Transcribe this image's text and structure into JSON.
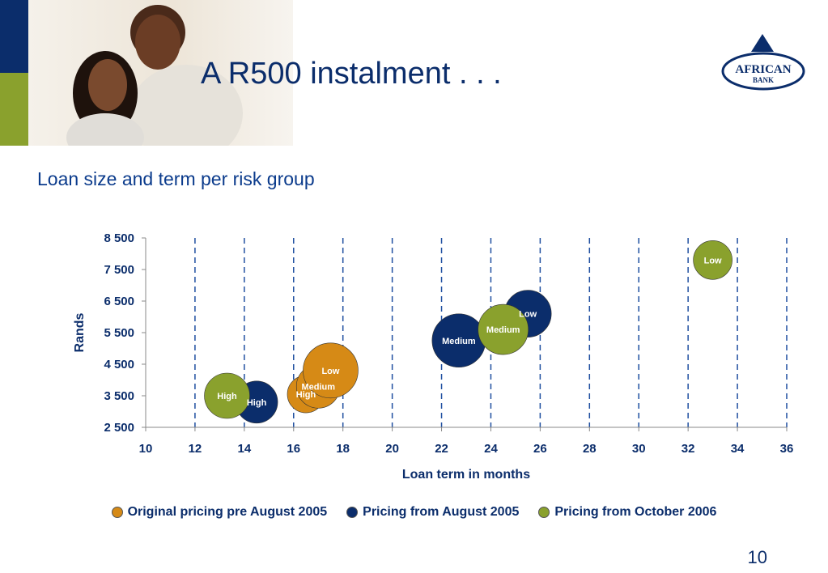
{
  "slide": {
    "title": "A R500 instalment . . .",
    "subtitle": "Loan size and term per risk group",
    "page_number": "10",
    "logo_text_line1": "AFRICAN",
    "logo_text_line2": "BANK"
  },
  "colors": {
    "navy": "#0b2d6b",
    "green": "#8aa12d",
    "orange": "#d68a16",
    "dark_blue": "#0b2d6b",
    "olive": "#8aa12d"
  },
  "chart_data": {
    "type": "scatter",
    "xlabel": "Loan term in months",
    "ylabel": "Rands",
    "xlim": [
      10,
      36
    ],
    "ylim": [
      2500,
      8500
    ],
    "x_ticks": [
      "10",
      "12",
      "14",
      "16",
      "18",
      "20",
      "22",
      "24",
      "26",
      "28",
      "30",
      "32",
      "34",
      "36"
    ],
    "y_ticks": [
      "2 500",
      "3 500",
      "4 500",
      "5 500",
      "6 500",
      "7 500",
      "8 500"
    ],
    "grid": "vertical dashed",
    "legend_position": "bottom",
    "series": [
      {
        "name": "Original pricing pre August 2005",
        "color": "#d68a16",
        "points": [
          {
            "x": 16.5,
            "y": 3550,
            "label": "High"
          },
          {
            "x": 17.0,
            "y": 3800,
            "label": "Medium"
          },
          {
            "x": 17.5,
            "y": 4300,
            "label": "Low"
          }
        ]
      },
      {
        "name": "Pricing from August 2005",
        "color": "#0b2d6b",
        "points": [
          {
            "x": 14.5,
            "y": 3300,
            "label": "High"
          },
          {
            "x": 22.7,
            "y": 5250,
            "label": "Medium"
          },
          {
            "x": 25.5,
            "y": 6100,
            "label": "Low"
          }
        ]
      },
      {
        "name": "Pricing from October 2006",
        "color": "#8aa12d",
        "points": [
          {
            "x": 13.3,
            "y": 3500,
            "label": "High"
          },
          {
            "x": 24.5,
            "y": 5600,
            "label": "Medium"
          },
          {
            "x": 33.0,
            "y": 7800,
            "label": "Low"
          }
        ]
      }
    ]
  }
}
